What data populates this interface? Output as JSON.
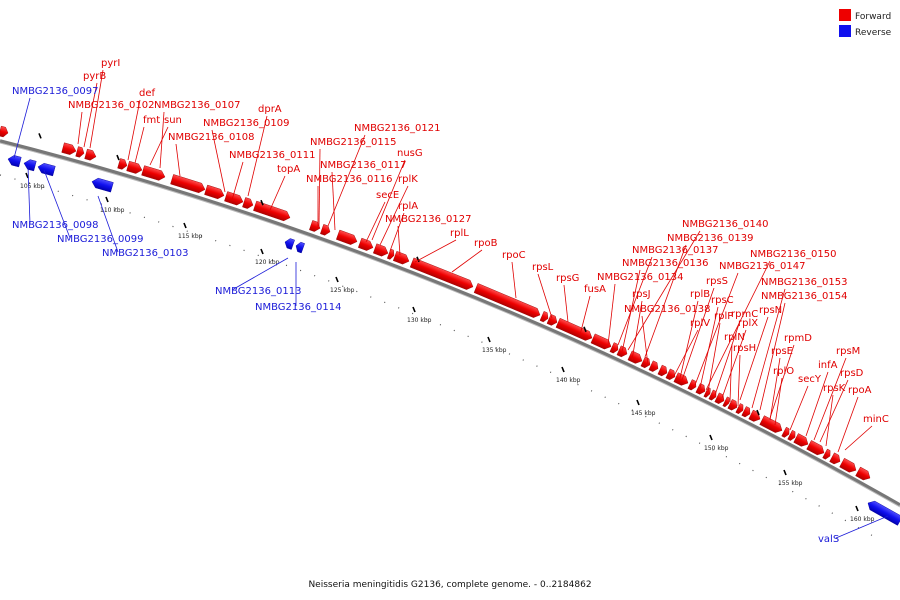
{
  "caption": "Neisseria meningitidis G2136, complete genome. - 0..2184862",
  "legend": [
    {
      "label": "Forward",
      "color": "#ee0000"
    },
    {
      "label": "Reverse",
      "color": "#1010ee"
    }
  ],
  "axis_ticks": [
    "105 kbp",
    "110 kbp",
    "115 kbp",
    "120 kbp",
    "125 kbp",
    "130 kbp",
    "135 kbp",
    "140 kbp",
    "145 kbp",
    "150 kbp",
    "155 kbp",
    "160 kbp"
  ],
  "colors": {
    "forward": "#ee0000",
    "reverse": "#1010ee",
    "backbone": "#888888"
  },
  "forward_genes": [
    "pyrI",
    "pyrB",
    "NMBG2136_0102",
    "def",
    "fmt",
    "sun",
    "NMBG2136_0107",
    "dprA",
    "NMBG2136_0109",
    "NMBG2136_0108",
    "NMBG2136_0111",
    "topA",
    "NMBG2136_0121",
    "NMBG2136_0115",
    "nusG",
    "NMBG2136_0117",
    "NMBG2136_0116",
    "rplK",
    "secE",
    "rplA",
    "NMBG2136_0127",
    "rplL",
    "rpoB",
    "rpoC",
    "rpsL",
    "rpsG",
    "fusA",
    "NMBG2136_0140",
    "NMBG2136_0139",
    "NMBG2136_0137",
    "NMBG2136_0136",
    "NMBG2136_0134",
    "rpsJ",
    "NMBG2136_0138",
    "NMBG2136_0150",
    "NMBG2136_0147",
    "rpsS",
    "rplB",
    "rpsC",
    "rplP",
    "rpmC",
    "rplV",
    "rplX",
    "NMBG2136_0153",
    "rpsN",
    "NMBG2136_0154",
    "rplN",
    "rpsH",
    "rpmD",
    "rpsE",
    "rplO",
    "secY",
    "infA",
    "rpsM",
    "rpsD",
    "rpsK",
    "rpoA",
    "minC"
  ],
  "reverse_genes": [
    "NMBG2136_0097",
    "NMBG2136_0098",
    "NMBG2136_0099",
    "NMBG2136_0103",
    "NMBG2136_0113",
    "NMBG2136_0114",
    "valS"
  ]
}
